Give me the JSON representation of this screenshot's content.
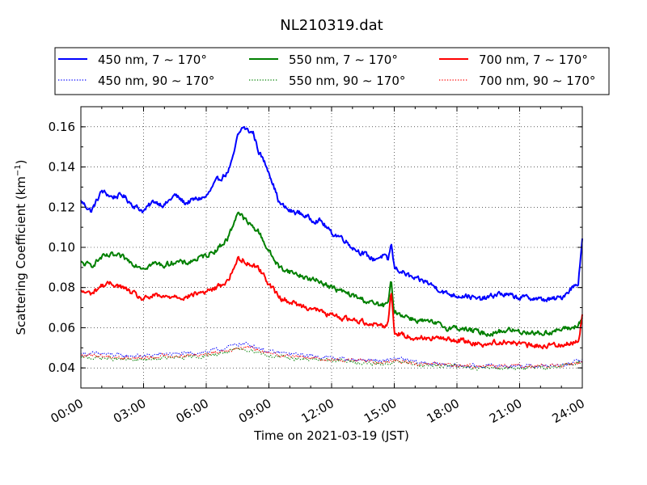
{
  "chart_data": {
    "type": "line",
    "title": "NL210319.dat",
    "xlabel": "Time on 2021-03-19 (JST)",
    "ylabel": "Scattering Coefficient (km",
    "ylabel_sup": "−1",
    "ylabel_close": ")",
    "xlim": [
      0,
      24
    ],
    "ylim": [
      0.03,
      0.17
    ],
    "x_ticks": [
      0,
      3,
      6,
      9,
      12,
      15,
      18,
      21,
      24
    ],
    "x_tick_labels": [
      "00:00",
      "03:00",
      "06:00",
      "09:00",
      "12:00",
      "15:00",
      "18:00",
      "21:00",
      "24:00"
    ],
    "y_ticks": [
      0.04,
      0.06,
      0.08,
      0.1,
      0.12,
      0.14,
      0.16
    ],
    "y_tick_labels": [
      "0.04",
      "0.06",
      "0.08",
      "0.10",
      "0.12",
      "0.14",
      "0.16"
    ],
    "grid": true,
    "legend_position": "top, above plot, 3 columns",
    "series": [
      {
        "name": "450 nm, 7 ∼ 170°",
        "color": "#0000ff",
        "style": "solid",
        "x": [
          0,
          0.5,
          1,
          1.5,
          2,
          2.5,
          3,
          3.5,
          4,
          4.5,
          5,
          5.5,
          6,
          6.5,
          7,
          7.25,
          7.5,
          7.75,
          8,
          8.25,
          8.5,
          9,
          9.5,
          10,
          10.5,
          11,
          11.5,
          12,
          12.5,
          13,
          13.5,
          14,
          14.5,
          14.7,
          14.85,
          15,
          15.5,
          16,
          16.5,
          17,
          17.5,
          18,
          18.5,
          19,
          19.5,
          20,
          20.5,
          21,
          21.5,
          22,
          22.5,
          23,
          23.5,
          23.8,
          24
        ],
        "y": [
          0.123,
          0.118,
          0.128,
          0.125,
          0.126,
          0.121,
          0.118,
          0.123,
          0.121,
          0.126,
          0.122,
          0.124,
          0.125,
          0.133,
          0.137,
          0.143,
          0.155,
          0.16,
          0.158,
          0.157,
          0.148,
          0.138,
          0.122,
          0.118,
          0.117,
          0.114,
          0.113,
          0.107,
          0.105,
          0.1,
          0.097,
          0.094,
          0.096,
          0.093,
          0.102,
          0.09,
          0.087,
          0.084,
          0.083,
          0.08,
          0.077,
          0.076,
          0.076,
          0.074,
          0.075,
          0.077,
          0.076,
          0.075,
          0.075,
          0.074,
          0.074,
          0.075,
          0.08,
          0.082,
          0.105
        ]
      },
      {
        "name": "450 nm, 90 ∼ 170°",
        "color": "#0000ff",
        "style": "dotted",
        "x": [
          0,
          1,
          2,
          3,
          4,
          5,
          6,
          6.5,
          7,
          7.5,
          8,
          8.5,
          9,
          10,
          11,
          12,
          13,
          14,
          14.5,
          15,
          16,
          17,
          18,
          19,
          20,
          21,
          22,
          23,
          24
        ],
        "y": [
          0.047,
          0.047,
          0.046,
          0.046,
          0.047,
          0.047,
          0.048,
          0.049,
          0.05,
          0.052,
          0.052,
          0.05,
          0.048,
          0.047,
          0.046,
          0.045,
          0.044,
          0.044,
          0.043,
          0.045,
          0.043,
          0.042,
          0.041,
          0.041,
          0.041,
          0.041,
          0.041,
          0.041,
          0.044
        ]
      },
      {
        "name": "550 nm, 7 ∼ 170°",
        "color": "#008000",
        "style": "solid",
        "x": [
          0,
          0.5,
          1,
          1.5,
          2,
          2.5,
          3,
          3.5,
          4,
          4.5,
          5,
          5.5,
          6,
          6.5,
          7,
          7.25,
          7.5,
          7.75,
          8,
          8.5,
          9,
          9.5,
          10,
          10.5,
          11,
          11.5,
          12,
          12.5,
          13,
          13.5,
          14,
          14.5,
          14.7,
          14.85,
          15,
          15.5,
          16,
          16.5,
          17,
          17.5,
          18,
          18.5,
          19,
          19.5,
          20,
          20.5,
          21,
          21.5,
          22,
          22.5,
          23,
          23.5,
          23.8,
          24
        ],
        "y": [
          0.092,
          0.091,
          0.095,
          0.096,
          0.095,
          0.092,
          0.09,
          0.092,
          0.091,
          0.093,
          0.092,
          0.094,
          0.096,
          0.099,
          0.104,
          0.11,
          0.118,
          0.115,
          0.112,
          0.108,
          0.098,
          0.09,
          0.088,
          0.086,
          0.084,
          0.083,
          0.08,
          0.078,
          0.076,
          0.074,
          0.072,
          0.071,
          0.072,
          0.083,
          0.068,
          0.066,
          0.064,
          0.063,
          0.062,
          0.06,
          0.06,
          0.059,
          0.058,
          0.057,
          0.058,
          0.059,
          0.058,
          0.058,
          0.057,
          0.058,
          0.059,
          0.06,
          0.061,
          0.065
        ]
      },
      {
        "name": "550 nm, 90 ∼ 170°",
        "color": "#008000",
        "style": "dotted",
        "x": [
          0,
          1,
          2,
          3,
          4,
          5,
          6,
          6.5,
          7,
          7.5,
          8,
          8.5,
          9,
          10,
          11,
          12,
          13,
          14,
          14.5,
          15,
          16,
          17,
          18,
          19,
          20,
          21,
          22,
          23,
          24
        ],
        "y": [
          0.045,
          0.045,
          0.044,
          0.044,
          0.045,
          0.045,
          0.046,
          0.047,
          0.048,
          0.049,
          0.049,
          0.048,
          0.046,
          0.045,
          0.044,
          0.044,
          0.043,
          0.042,
          0.042,
          0.043,
          0.042,
          0.041,
          0.041,
          0.04,
          0.04,
          0.04,
          0.04,
          0.041,
          0.043
        ]
      },
      {
        "name": "700 nm, 7 ∼ 170°",
        "color": "#ff0000",
        "style": "solid",
        "x": [
          0,
          0.5,
          1,
          1.5,
          2,
          2.5,
          3,
          3.5,
          4,
          4.5,
          5,
          5.5,
          6,
          6.5,
          7,
          7.25,
          7.5,
          7.75,
          8,
          8.5,
          9,
          9.5,
          10,
          10.5,
          11,
          11.5,
          12,
          12.5,
          13,
          13.5,
          14,
          14.5,
          14.7,
          14.85,
          15,
          15.5,
          16,
          16.5,
          17,
          17.5,
          18,
          18.5,
          19,
          19.5,
          20,
          20.5,
          21,
          21.5,
          22,
          22.5,
          23,
          23.5,
          23.8,
          24
        ],
        "y": [
          0.078,
          0.077,
          0.081,
          0.082,
          0.08,
          0.077,
          0.074,
          0.076,
          0.075,
          0.076,
          0.075,
          0.077,
          0.078,
          0.08,
          0.083,
          0.088,
          0.094,
          0.094,
          0.092,
          0.09,
          0.082,
          0.075,
          0.073,
          0.071,
          0.07,
          0.068,
          0.066,
          0.065,
          0.064,
          0.063,
          0.062,
          0.061,
          0.062,
          0.079,
          0.058,
          0.056,
          0.055,
          0.055,
          0.055,
          0.054,
          0.054,
          0.053,
          0.052,
          0.052,
          0.053,
          0.053,
          0.052,
          0.051,
          0.051,
          0.051,
          0.052,
          0.052,
          0.053,
          0.066
        ]
      },
      {
        "name": "700 nm, 90 ∼ 170°",
        "color": "#ff0000",
        "style": "dotted",
        "x": [
          0,
          1,
          2,
          3,
          4,
          5,
          6,
          6.5,
          7,
          7.5,
          8,
          8.5,
          9,
          10,
          11,
          12,
          13,
          14,
          14.5,
          15,
          16,
          17,
          18,
          19,
          20,
          21,
          22,
          23,
          24
        ],
        "y": [
          0.046,
          0.046,
          0.045,
          0.045,
          0.046,
          0.046,
          0.047,
          0.048,
          0.049,
          0.05,
          0.05,
          0.049,
          0.047,
          0.046,
          0.045,
          0.044,
          0.044,
          0.043,
          0.043,
          0.044,
          0.042,
          0.042,
          0.041,
          0.041,
          0.041,
          0.041,
          0.041,
          0.041,
          0.043
        ]
      }
    ]
  }
}
